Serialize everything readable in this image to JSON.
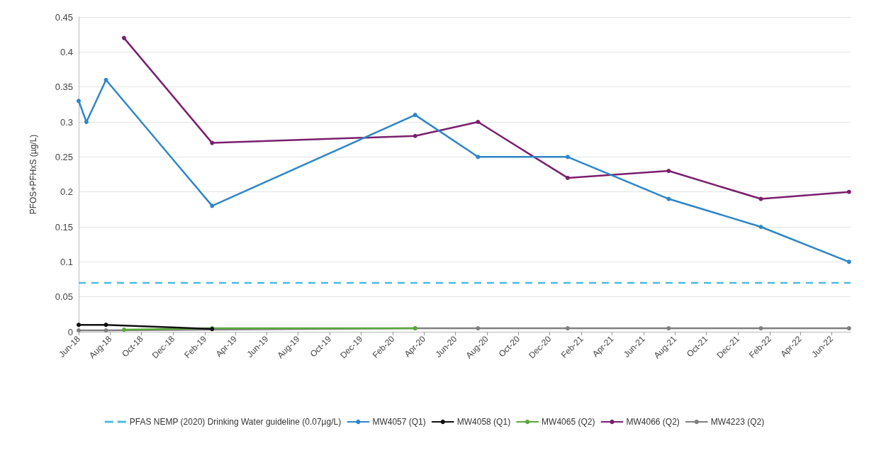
{
  "chart_data": {
    "type": "line",
    "ylabel": "PFOS+PFHxS (µg/L)",
    "xlim": [
      "2018-06-01",
      "2022-07-08"
    ],
    "xticks": [
      {
        "value": "2018-06-01",
        "label": "Jun-18"
      },
      {
        "value": "2018-08-01",
        "label": "Aug-18"
      },
      {
        "value": "2018-10-01",
        "label": "Oct-18"
      },
      {
        "value": "2018-12-01",
        "label": "Dec-18"
      },
      {
        "value": "2019-02-01",
        "label": "Feb-19"
      },
      {
        "value": "2019-04-01",
        "label": "Apr-19"
      },
      {
        "value": "2019-06-01",
        "label": "Jun-19"
      },
      {
        "value": "2019-08-01",
        "label": "Aug-19"
      },
      {
        "value": "2019-10-01",
        "label": "Oct-19"
      },
      {
        "value": "2019-12-01",
        "label": "Dec-19"
      },
      {
        "value": "2020-02-01",
        "label": "Feb-20"
      },
      {
        "value": "2020-04-01",
        "label": "Apr-20"
      },
      {
        "value": "2020-06-01",
        "label": "Jun-20"
      },
      {
        "value": "2020-08-01",
        "label": "Aug-20"
      },
      {
        "value": "2020-10-01",
        "label": "Oct-20"
      },
      {
        "value": "2020-12-01",
        "label": "Dec-20"
      },
      {
        "value": "2021-02-01",
        "label": "Feb-21"
      },
      {
        "value": "2021-04-01",
        "label": "Apr-21"
      },
      {
        "value": "2021-06-01",
        "label": "Jun-21"
      },
      {
        "value": "2021-08-01",
        "label": "Aug-21"
      },
      {
        "value": "2021-10-01",
        "label": "Oct-21"
      },
      {
        "value": "2021-12-01",
        "label": "Dec-21"
      },
      {
        "value": "2022-02-01",
        "label": "Feb-22"
      },
      {
        "value": "2022-04-01",
        "label": "Apr-22"
      },
      {
        "value": "2022-06-01",
        "label": "Jun-22"
      }
    ],
    "ylim": [
      0,
      0.45
    ],
    "yticks": [
      0,
      0.05,
      0.1,
      0.15,
      0.2,
      0.25,
      0.3,
      0.35,
      0.4,
      0.45
    ],
    "grid": "y",
    "legend": "bottom",
    "marker": "circle",
    "line_style": "solid",
    "ref_lines": [
      {
        "axis": "y",
        "value": 0.07,
        "label": "PFAS NEMP (2020) Drinking Water guideline (0.07µg/L)",
        "color": "#4bbbe0",
        "line_style": "dashed"
      }
    ],
    "series": [
      {
        "name": "MW4057 (Q1)",
        "color": "#2e86c8",
        "x": [
          "2018-06-01",
          "2018-06-16",
          "2018-07-24",
          "2019-02-15",
          "2020-03-15",
          "2020-07-15",
          "2021-01-05",
          "2021-07-20",
          "2022-01-15",
          "2022-07-05"
        ],
        "values": [
          0.33,
          0.3,
          0.36,
          0.18,
          0.31,
          0.25,
          0.25,
          0.19,
          0.15,
          0.1
        ]
      },
      {
        "name": "MW4058 (Q1)",
        "color": "#111111",
        "x": [
          "2018-06-01",
          "2018-07-24",
          "2019-02-15"
        ],
        "values": [
          0.01,
          0.01,
          0.004
        ]
      },
      {
        "name": "MW4065 (Q2)",
        "color": "#5aa83a",
        "x": [
          "2018-08-28",
          "2019-02-15",
          "2020-03-15"
        ],
        "values": [
          0.003,
          0.005,
          0.005
        ]
      },
      {
        "name": "MW4066 (Q2)",
        "color": "#7b1f6e",
        "x": [
          "2018-08-28",
          "2019-02-15",
          "2020-03-15",
          "2020-07-15",
          "2021-01-05",
          "2021-07-20",
          "2022-01-15",
          "2022-07-05"
        ],
        "values": [
          0.42,
          0.27,
          0.28,
          0.3,
          0.22,
          0.23,
          0.19,
          0.2
        ]
      },
      {
        "name": "MW4223 (Q2)",
        "color": "#7f7f7f",
        "x": [
          "2018-06-01",
          "2018-07-24",
          "2020-03-15",
          "2020-07-15",
          "2021-01-05",
          "2021-07-20",
          "2022-01-15",
          "2022-07-05"
        ],
        "values": [
          0.002,
          0.002,
          0.005,
          0.005,
          0.005,
          0.005,
          0.005,
          0.005
        ]
      }
    ]
  }
}
